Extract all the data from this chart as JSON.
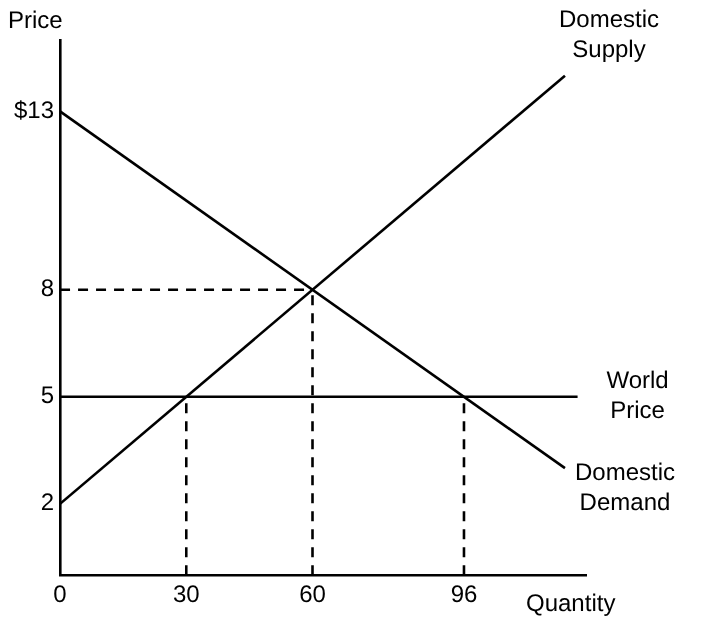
{
  "chart_data": {
    "type": "line",
    "xlabel": "Quantity",
    "ylabel": "Price",
    "xlim": [
      0,
      125
    ],
    "ylim": [
      0,
      15
    ],
    "xticks": [
      0,
      30,
      60,
      96
    ],
    "yticks": [
      2,
      5,
      8,
      {
        "value": 13,
        "label": "$13"
      }
    ],
    "grid": false,
    "legend": false,
    "marker": "none",
    "line_style": "solid",
    "series": [
      {
        "name": "Domestic Supply",
        "color": "#000000",
        "x": [
          0,
          120
        ],
        "values": [
          2,
          14
        ]
      },
      {
        "name": "Domestic Demand",
        "color": "#000000",
        "x": [
          0,
          120
        ],
        "values": [
          13,
          3
        ]
      },
      {
        "name": "World Price",
        "color": "#000000",
        "x": [
          0,
          123
        ],
        "values": [
          5,
          5
        ]
      },
      {
        "color": "#000000",
        "x": [
          30,
          30
        ],
        "values": [
          0,
          5
        ],
        "line_style": "dashed"
      },
      {
        "color": "#000000",
        "x": [
          60,
          60
        ],
        "values": [
          0,
          8
        ],
        "line_style": "dashed"
      },
      {
        "color": "#000000",
        "x": [
          96,
          96
        ],
        "values": [
          0,
          5
        ],
        "line_style": "dashed"
      },
      {
        "color": "#000000",
        "x": [
          0,
          60
        ],
        "values": [
          8,
          8
        ],
        "line_style": "dashed"
      }
    ]
  }
}
